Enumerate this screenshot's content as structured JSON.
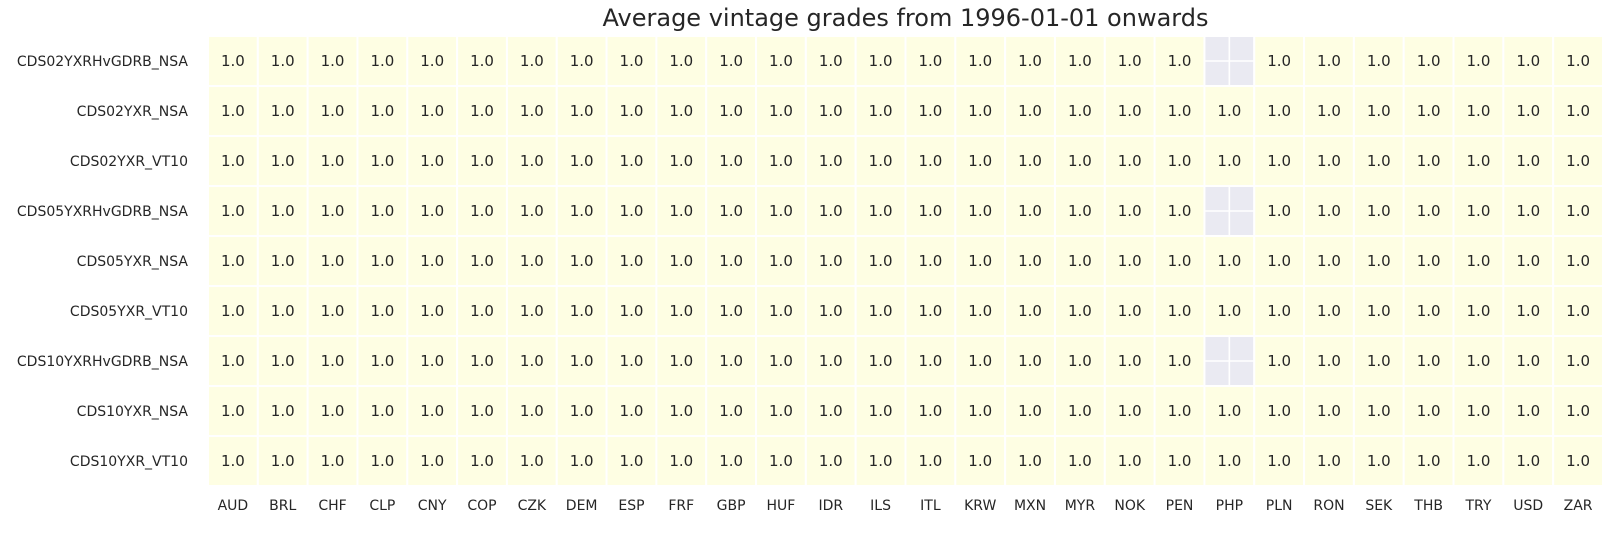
{
  "chart_data": {
    "type": "heatmap",
    "title": "Average vintage grades from 1996-01-01 onwards",
    "xlabel": "",
    "ylabel": "",
    "columns": [
      "AUD",
      "BRL",
      "CHF",
      "CLP",
      "CNY",
      "COP",
      "CZK",
      "DEM",
      "ESP",
      "FRF",
      "GBP",
      "HUF",
      "IDR",
      "ILS",
      "ITL",
      "KRW",
      "MXN",
      "MYR",
      "NOK",
      "PEN",
      "PHP",
      "PLN",
      "RON",
      "SEK",
      "THB",
      "TRY",
      "USD",
      "ZAR"
    ],
    "rows": [
      "CDS02YXRHvGDRB_NSA",
      "CDS02YXR_NSA",
      "CDS02YXR_VT10",
      "CDS05YXRHvGDRB_NSA",
      "CDS05YXR_NSA",
      "CDS05YXR_VT10",
      "CDS10YXRHvGDRB_NSA",
      "CDS10YXR_NSA",
      "CDS10YXR_VT10"
    ],
    "values": [
      [
        1.0,
        1.0,
        1.0,
        1.0,
        1.0,
        1.0,
        1.0,
        1.0,
        1.0,
        1.0,
        1.0,
        1.0,
        1.0,
        1.0,
        1.0,
        1.0,
        1.0,
        1.0,
        1.0,
        1.0,
        null,
        1.0,
        1.0,
        1.0,
        1.0,
        1.0,
        1.0,
        1.0
      ],
      [
        1.0,
        1.0,
        1.0,
        1.0,
        1.0,
        1.0,
        1.0,
        1.0,
        1.0,
        1.0,
        1.0,
        1.0,
        1.0,
        1.0,
        1.0,
        1.0,
        1.0,
        1.0,
        1.0,
        1.0,
        1.0,
        1.0,
        1.0,
        1.0,
        1.0,
        1.0,
        1.0,
        1.0
      ],
      [
        1.0,
        1.0,
        1.0,
        1.0,
        1.0,
        1.0,
        1.0,
        1.0,
        1.0,
        1.0,
        1.0,
        1.0,
        1.0,
        1.0,
        1.0,
        1.0,
        1.0,
        1.0,
        1.0,
        1.0,
        1.0,
        1.0,
        1.0,
        1.0,
        1.0,
        1.0,
        1.0,
        1.0
      ],
      [
        1.0,
        1.0,
        1.0,
        1.0,
        1.0,
        1.0,
        1.0,
        1.0,
        1.0,
        1.0,
        1.0,
        1.0,
        1.0,
        1.0,
        1.0,
        1.0,
        1.0,
        1.0,
        1.0,
        1.0,
        null,
        1.0,
        1.0,
        1.0,
        1.0,
        1.0,
        1.0,
        1.0
      ],
      [
        1.0,
        1.0,
        1.0,
        1.0,
        1.0,
        1.0,
        1.0,
        1.0,
        1.0,
        1.0,
        1.0,
        1.0,
        1.0,
        1.0,
        1.0,
        1.0,
        1.0,
        1.0,
        1.0,
        1.0,
        1.0,
        1.0,
        1.0,
        1.0,
        1.0,
        1.0,
        1.0,
        1.0
      ],
      [
        1.0,
        1.0,
        1.0,
        1.0,
        1.0,
        1.0,
        1.0,
        1.0,
        1.0,
        1.0,
        1.0,
        1.0,
        1.0,
        1.0,
        1.0,
        1.0,
        1.0,
        1.0,
        1.0,
        1.0,
        1.0,
        1.0,
        1.0,
        1.0,
        1.0,
        1.0,
        1.0,
        1.0
      ],
      [
        1.0,
        1.0,
        1.0,
        1.0,
        1.0,
        1.0,
        1.0,
        1.0,
        1.0,
        1.0,
        1.0,
        1.0,
        1.0,
        1.0,
        1.0,
        1.0,
        1.0,
        1.0,
        1.0,
        1.0,
        null,
        1.0,
        1.0,
        1.0,
        1.0,
        1.0,
        1.0,
        1.0
      ],
      [
        1.0,
        1.0,
        1.0,
        1.0,
        1.0,
        1.0,
        1.0,
        1.0,
        1.0,
        1.0,
        1.0,
        1.0,
        1.0,
        1.0,
        1.0,
        1.0,
        1.0,
        1.0,
        1.0,
        1.0,
        1.0,
        1.0,
        1.0,
        1.0,
        1.0,
        1.0,
        1.0,
        1.0
      ],
      [
        1.0,
        1.0,
        1.0,
        1.0,
        1.0,
        1.0,
        1.0,
        1.0,
        1.0,
        1.0,
        1.0,
        1.0,
        1.0,
        1.0,
        1.0,
        1.0,
        1.0,
        1.0,
        1.0,
        1.0,
        1.0,
        1.0,
        1.0,
        1.0,
        1.0,
        1.0,
        1.0,
        1.0
      ]
    ],
    "cell_color": "#fefee3",
    "missing_color": "#eaeaf2",
    "grid_line_color": "#ffffff",
    "legend": "none"
  }
}
